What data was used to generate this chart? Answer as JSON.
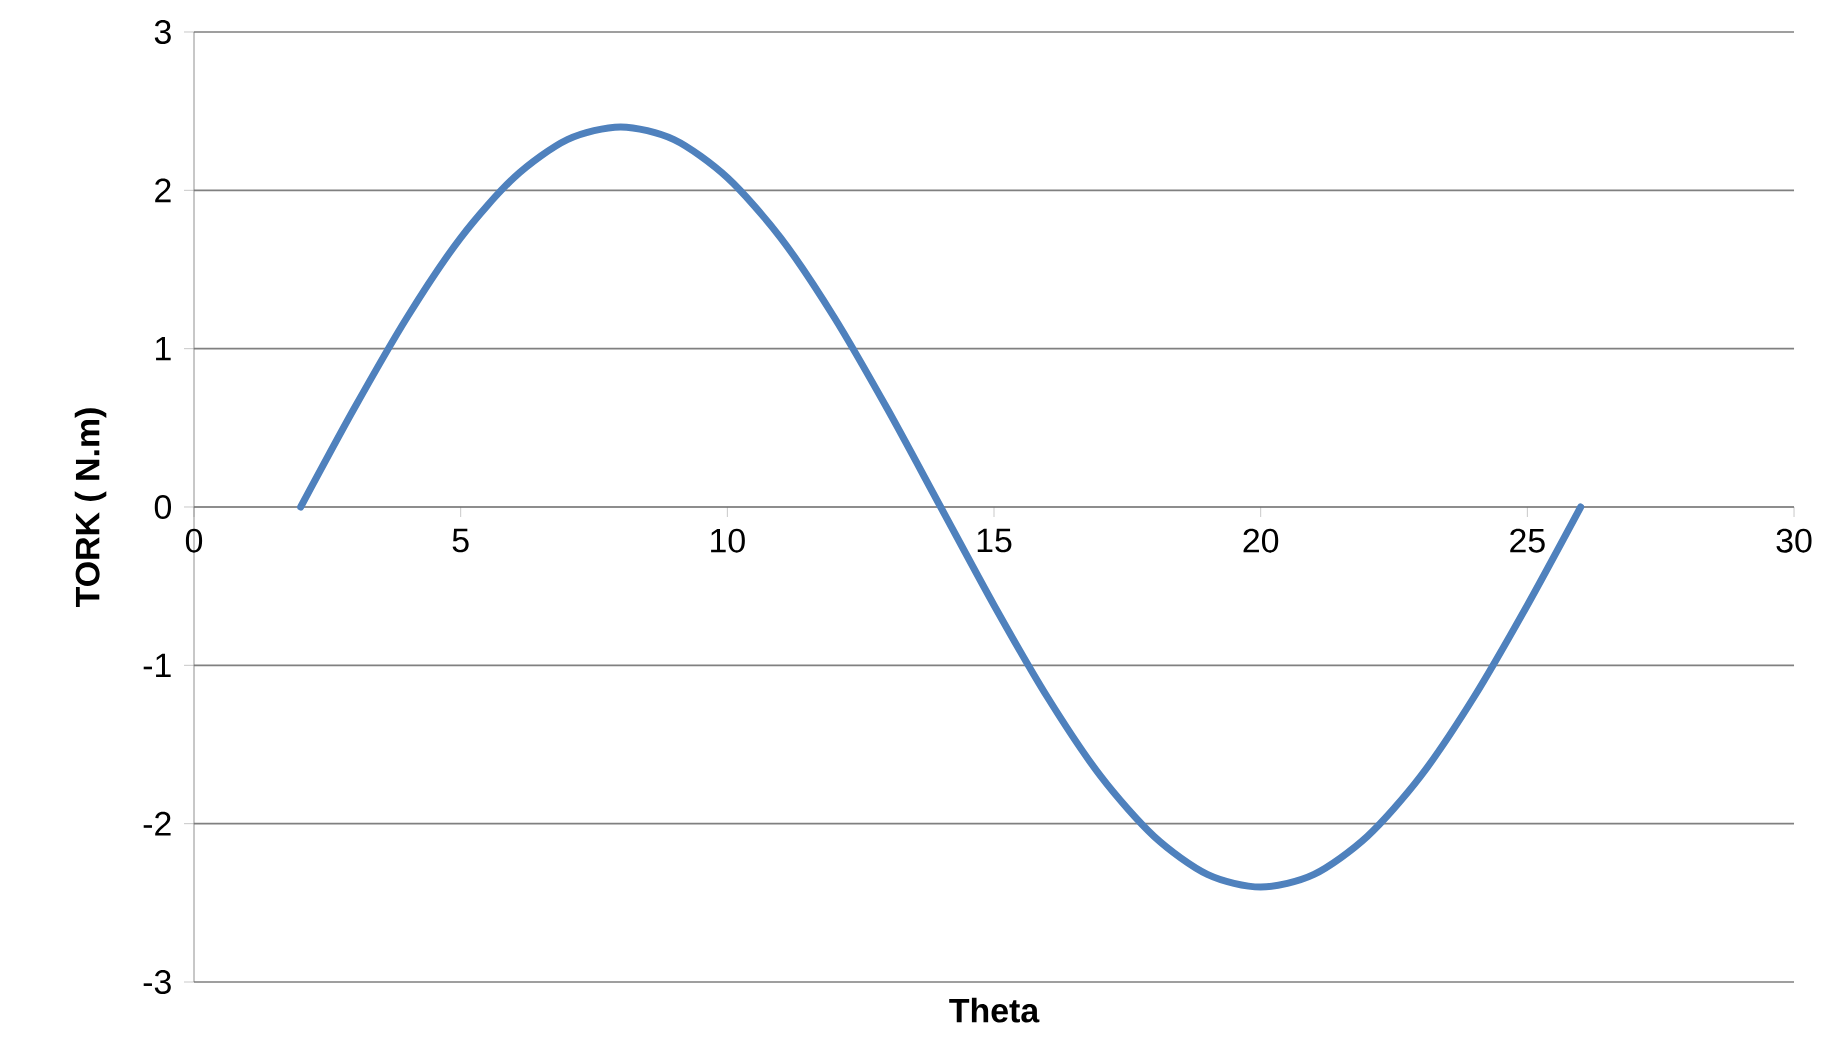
{
  "chart_data": {
    "type": "line",
    "xlabel": "Theta",
    "ylabel": "TORK ( N.m)",
    "xlim": [
      0,
      30
    ],
    "ylim": [
      -3,
      3
    ],
    "xticks": [
      0,
      5,
      10,
      15,
      20,
      25,
      30
    ],
    "yticks": [
      -3,
      -2,
      -1,
      0,
      1,
      2,
      3
    ],
    "grid": "y",
    "marker": "none",
    "line_style": "solid",
    "series": [
      {
        "color": "#4f81bd",
        "x": [
          2,
          3,
          4,
          5,
          6,
          7,
          8,
          9,
          10,
          11,
          12,
          13,
          14,
          15,
          16,
          17,
          18,
          19,
          20,
          21,
          22,
          23,
          24,
          25,
          26
        ],
        "values": [
          0,
          0.62,
          1.2,
          1.7,
          2.08,
          2.32,
          2.4,
          2.32,
          2.08,
          1.7,
          1.2,
          0.62,
          0,
          -0.62,
          -1.2,
          -1.7,
          -2.08,
          -2.32,
          -2.4,
          -2.32,
          -2.08,
          -1.7,
          -1.2,
          -0.62,
          0
        ]
      }
    ]
  }
}
